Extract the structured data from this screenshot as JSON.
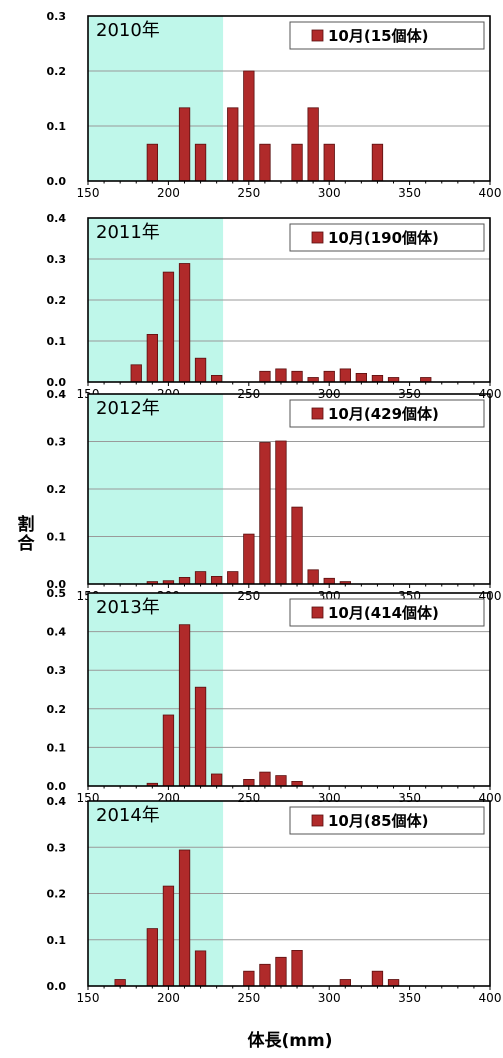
{
  "chart_data": {
    "type": "bar",
    "xlabel": "体長(mm)",
    "ylabel": "割合",
    "x_ticks": [
      "150",
      "200",
      "250",
      "300",
      "350",
      "400"
    ],
    "xlim": [
      150,
      400
    ],
    "shaded_range": [
      150,
      234
    ],
    "colors": {
      "bar": "#b02a2a",
      "bar_edge": "#5a0f0f",
      "shade": "#bff7ea"
    },
    "panels": [
      {
        "title": "2010年",
        "legend": "10月(15個体)",
        "ylim": [
          0,
          0.3
        ],
        "y_ticks": [
          "0.0",
          "0.1",
          "0.2",
          "0.3"
        ],
        "x": [
          190,
          210,
          220,
          240,
          250,
          260,
          280,
          290,
          300,
          330
        ],
        "values": [
          0.067,
          0.133,
          0.067,
          0.133,
          0.2,
          0.067,
          0.067,
          0.133,
          0.067,
          0.067
        ]
      },
      {
        "title": "2011年",
        "legend": "10月(190個体)",
        "ylim": [
          0,
          0.4
        ],
        "y_ticks": [
          "0.0",
          "0.1",
          "0.2",
          "0.3",
          "0.4"
        ],
        "x": [
          180,
          190,
          200,
          210,
          220,
          230,
          260,
          270,
          280,
          290,
          300,
          310,
          320,
          330,
          340,
          360
        ],
        "values": [
          0.042,
          0.116,
          0.268,
          0.289,
          0.058,
          0.016,
          0.026,
          0.032,
          0.026,
          0.011,
          0.026,
          0.032,
          0.021,
          0.016,
          0.011,
          0.011
        ]
      },
      {
        "title": "2012年",
        "legend": "10月(429個体)",
        "ylim": [
          0,
          0.4
        ],
        "y_ticks": [
          "0.0",
          "0.1",
          "0.2",
          "0.3",
          "0.4"
        ],
        "x": [
          190,
          200,
          210,
          220,
          230,
          240,
          250,
          260,
          270,
          280,
          290,
          300,
          310
        ],
        "values": [
          0.005,
          0.007,
          0.014,
          0.026,
          0.016,
          0.026,
          0.105,
          0.298,
          0.301,
          0.162,
          0.03,
          0.012,
          0.005
        ]
      },
      {
        "title": "2013年",
        "legend": "10月(414個体)",
        "ylim": [
          0,
          0.5
        ],
        "y_ticks": [
          "0.0",
          "0.1",
          "0.2",
          "0.3",
          "0.4",
          "0.5"
        ],
        "x": [
          190,
          200,
          210,
          220,
          230,
          250,
          260,
          270,
          280
        ],
        "values": [
          0.007,
          0.184,
          0.418,
          0.256,
          0.031,
          0.017,
          0.036,
          0.027,
          0.012
        ]
      },
      {
        "title": "2014年",
        "legend": "10月(85個体)",
        "ylim": [
          0,
          0.4
        ],
        "y_ticks": [
          "0.0",
          "0.1",
          "0.2",
          "0.3",
          "0.4"
        ],
        "x": [
          170,
          190,
          200,
          210,
          220,
          250,
          260,
          270,
          280,
          310,
          330,
          340
        ],
        "values": [
          0.014,
          0.124,
          0.216,
          0.294,
          0.076,
          0.032,
          0.047,
          0.062,
          0.077,
          0.014,
          0.032,
          0.014
        ]
      }
    ]
  }
}
